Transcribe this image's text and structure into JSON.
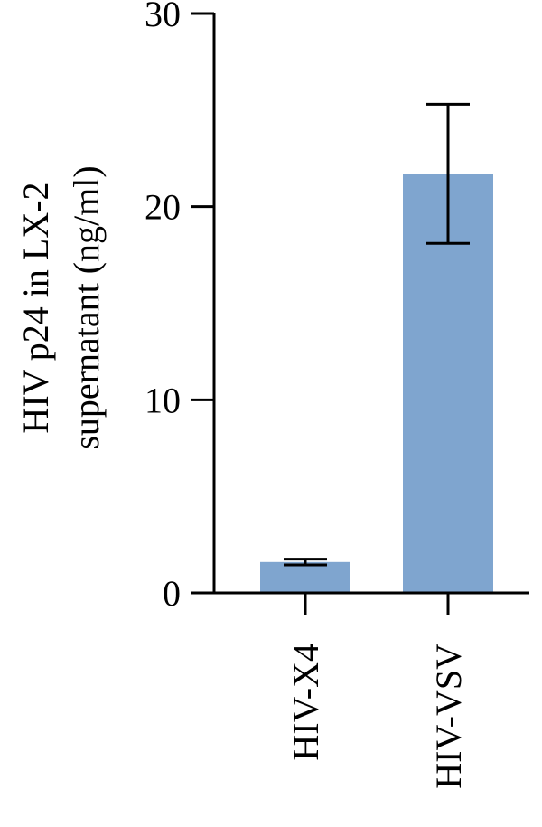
{
  "chart_data": {
    "type": "bar",
    "categories": [
      "HIV-X4",
      "HIV-VSV"
    ],
    "values": [
      1.6,
      21.7
    ],
    "error_low": [
      1.45,
      18.1
    ],
    "error_high": [
      1.75,
      25.3
    ],
    "ylabel_lines": [
      "HIV p24 in LX-2",
      "supernatant (ng/ml)"
    ],
    "ylim": [
      0,
      30
    ],
    "yticks": [
      0,
      10,
      20,
      30
    ],
    "ytick_labels": [
      "0",
      "10",
      "20",
      "30"
    ],
    "grid": false,
    "bar_color": "#7fa5cf",
    "axis_color": "#000000"
  }
}
